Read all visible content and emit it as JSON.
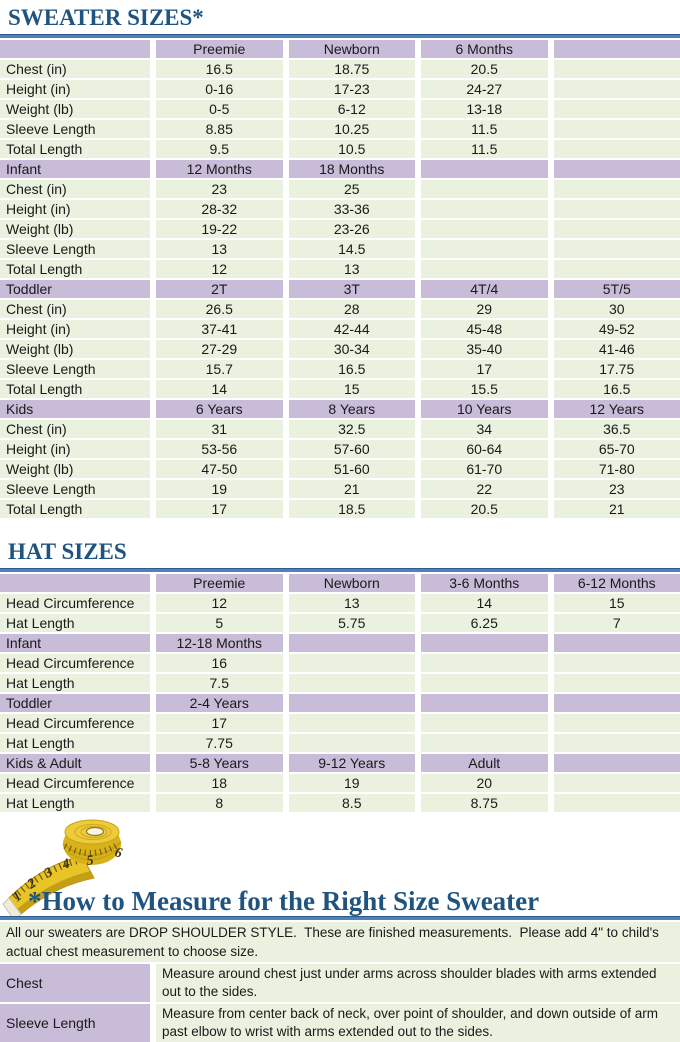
{
  "colors": {
    "heading_text": "#1F5480",
    "rule_blue": "#4F81BD",
    "header_purple": "#C9BCD9",
    "cell_green": "#EAF1DE",
    "tape_yellow": "#E9C427"
  },
  "sweater_table": {
    "title": "SWEATER SIZES*",
    "sections": [
      {
        "label": "",
        "columns": [
          "Preemie",
          "Newborn",
          "6 Months",
          ""
        ],
        "rows": [
          {
            "label": "Chest (in)",
            "values": [
              "16.5",
              "18.75",
              "20.5",
              ""
            ]
          },
          {
            "label": "Height (in)",
            "values": [
              "0-16",
              "17-23",
              "24-27",
              ""
            ]
          },
          {
            "label": "Weight (lb)",
            "values": [
              "0-5",
              "6-12",
              "13-18",
              ""
            ]
          },
          {
            "label": "Sleeve Length",
            "values": [
              "8.85",
              "10.25",
              "11.5",
              ""
            ]
          },
          {
            "label": "Total Length",
            "values": [
              "9.5",
              "10.5",
              "11.5",
              ""
            ]
          }
        ]
      },
      {
        "label": "Infant",
        "columns": [
          "12 Months",
          "18 Months",
          "",
          ""
        ],
        "rows": [
          {
            "label": "Chest (in)",
            "values": [
              "23",
              "25",
              "",
              ""
            ]
          },
          {
            "label": "Height (in)",
            "values": [
              "28-32",
              "33-36",
              "",
              ""
            ]
          },
          {
            "label": "Weight (lb)",
            "values": [
              "19-22",
              "23-26",
              "",
              ""
            ]
          },
          {
            "label": "Sleeve Length",
            "values": [
              "13",
              "14.5",
              "",
              ""
            ]
          },
          {
            "label": "Total Length",
            "values": [
              "12",
              "13",
              "",
              ""
            ]
          }
        ]
      },
      {
        "label": "Toddler",
        "columns": [
          "2T",
          "3T",
          "4T/4",
          "5T/5"
        ],
        "rows": [
          {
            "label": "Chest (in)",
            "values": [
              "26.5",
              "28",
              "29",
              "30"
            ]
          },
          {
            "label": "Height (in)",
            "values": [
              "37-41",
              "42-44",
              "45-48",
              "49-52"
            ]
          },
          {
            "label": "Weight (lb)",
            "values": [
              "27-29",
              "30-34",
              "35-40",
              "41-46"
            ]
          },
          {
            "label": "Sleeve Length",
            "values": [
              "15.7",
              "16.5",
              "17",
              "17.75"
            ]
          },
          {
            "label": "Total Length",
            "values": [
              "14",
              "15",
              "15.5",
              "16.5"
            ]
          }
        ]
      },
      {
        "label": "Kids",
        "columns": [
          "6 Years",
          "8 Years",
          "10 Years",
          "12 Years"
        ],
        "rows": [
          {
            "label": "Chest (in)",
            "values": [
              "31",
              "32.5",
              "34",
              "36.5"
            ]
          },
          {
            "label": "Height (in)",
            "values": [
              "53-56",
              "57-60",
              "60-64",
              "65-70"
            ]
          },
          {
            "label": "Weight (lb)",
            "values": [
              "47-50",
              "51-60",
              "61-70",
              "71-80"
            ]
          },
          {
            "label": "Sleeve Length",
            "values": [
              "19",
              "21",
              "22",
              "23"
            ]
          },
          {
            "label": "Total Length",
            "values": [
              "17",
              "18.5",
              "20.5",
              "21"
            ]
          }
        ]
      }
    ]
  },
  "hat_table": {
    "title": "HAT SIZES",
    "sections": [
      {
        "label": "",
        "columns": [
          "Preemie",
          "Newborn",
          "3-6 Months",
          "6-12 Months"
        ],
        "rows": [
          {
            "label": "Head Circumference",
            "values": [
              "12",
              "13",
              "14",
              "15"
            ]
          },
          {
            "label": "Hat Length",
            "values": [
              "5",
              "5.75",
              "6.25",
              "7"
            ]
          }
        ]
      },
      {
        "label": "Infant",
        "columns": [
          "12-18 Months",
          "",
          "",
          ""
        ],
        "rows": [
          {
            "label": "Head Circumference",
            "values": [
              "16",
              "",
              "",
              ""
            ]
          },
          {
            "label": "Hat Length",
            "values": [
              "7.5",
              "",
              "",
              ""
            ]
          }
        ]
      },
      {
        "label": "Toddler",
        "columns": [
          "2-4 Years",
          "",
          "",
          ""
        ],
        "rows": [
          {
            "label": "Head Circumference",
            "values": [
              "17",
              "",
              "",
              ""
            ]
          },
          {
            "label": "Hat Length",
            "values": [
              "7.75",
              "",
              "",
              ""
            ]
          }
        ]
      },
      {
        "label": "Kids & Adult",
        "columns": [
          "5-8 Years",
          "9-12 Years",
          "Adult",
          ""
        ],
        "rows": [
          {
            "label": "Head Circumference",
            "values": [
              "18",
              "19",
              "20",
              ""
            ]
          },
          {
            "label": "Hat Length",
            "values": [
              "8",
              "8.5",
              "8.75",
              ""
            ]
          }
        ]
      }
    ]
  },
  "measure": {
    "heading": "*How to Measure for the Right Size Sweater",
    "intro": "All our sweaters are DROP SHOULDER STYLE.  These are finished measurements.  Please add 4\" to child's actual chest measurement to choose size.",
    "tape_icon": "measuring-tape",
    "tape_numbers": [
      "1",
      "2",
      "3",
      "4",
      "5",
      "6"
    ],
    "rows": [
      {
        "label": "Chest",
        "text": "Measure around chest just under arms across shoulder blades with arms extended out to the sides."
      },
      {
        "label": "Sleeve Length",
        "text": "Measure from center back of neck, over point of shoulder, and down outside of arm past elbow to wrist with arms extended out to the sides."
      }
    ]
  }
}
